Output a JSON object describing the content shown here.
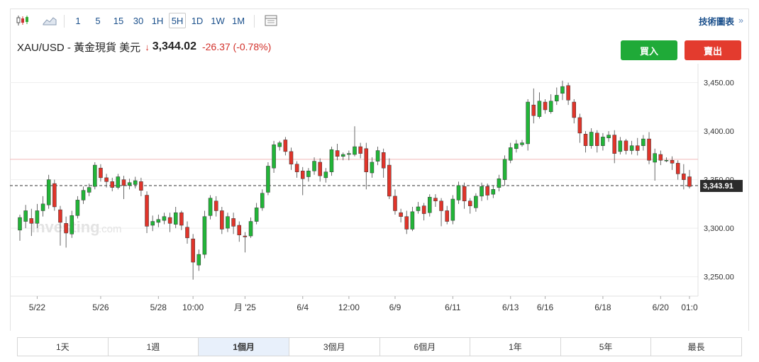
{
  "toolbar": {
    "intervals": [
      "1",
      "5",
      "15",
      "30",
      "1H",
      "5H",
      "1D",
      "1W",
      "1M"
    ],
    "selected_interval": "5H",
    "icons": [
      "candlestick-icon",
      "area-chart-icon",
      "data-table-icon"
    ],
    "tech_chart_label": "技術圖表",
    "tech_chart_arrow": "»"
  },
  "quote": {
    "symbol": "XAU/USD - 黃金現貨 美元",
    "direction_icon": "↓",
    "price": "3,344.02",
    "change": "-26.37 (-0.78%)"
  },
  "buttons": {
    "buy": "買入",
    "sell": "賣出"
  },
  "watermark": {
    "logo": "Investing",
    "suffix": ".com"
  },
  "chart_data": {
    "type": "candlestick",
    "instrument": "XAU/USD",
    "interval": "5H",
    "ylim": [
      3230,
      3468
    ],
    "y_ticks": [
      3250,
      3300,
      3350,
      3400,
      3450
    ],
    "y_tick_labels": [
      "3,250.00",
      "3,300.00",
      "3,350.00",
      "3,400.00",
      "3,450.00"
    ],
    "x_tick_labels": [
      {
        "label": "5/22",
        "idx": 3
      },
      {
        "label": "5/26",
        "idx": 14
      },
      {
        "label": "5/28",
        "idx": 24
      },
      {
        "label": "10:00",
        "idx": 30
      },
      {
        "label": "月 '25",
        "idx": 39
      },
      {
        "label": "6/4",
        "idx": 49
      },
      {
        "label": "12:00",
        "idx": 57
      },
      {
        "label": "6/9",
        "idx": 65
      },
      {
        "label": "6/11",
        "idx": 75
      },
      {
        "label": "6/13",
        "idx": 85
      },
      {
        "label": "6/16",
        "idx": 91
      },
      {
        "label": "6/18",
        "idx": 101
      },
      {
        "label": "6/20",
        "idx": 111
      },
      {
        "label": "01:0",
        "idx": 116
      }
    ],
    "current_price": 3343.91,
    "current_price_label": "3,343.91",
    "reference_line": 3371,
    "candles": [
      [
        3298,
        3311,
        3287,
        3314
      ],
      [
        3307,
        3318,
        3300,
        3324
      ],
      [
        3310,
        3305,
        3292,
        3320
      ],
      [
        3305,
        3318,
        3300,
        3325
      ],
      [
        3318,
        3325,
        3312,
        3333
      ],
      [
        3324,
        3350,
        3320,
        3355
      ],
      [
        3346,
        3322,
        3318,
        3350
      ],
      [
        3319,
        3306,
        3282,
        3323
      ],
      [
        3305,
        3295,
        3280,
        3312
      ],
      [
        3294,
        3313,
        3290,
        3318
      ],
      [
        3313,
        3329,
        3310,
        3333
      ],
      [
        3329,
        3339,
        3325,
        3343
      ],
      [
        3337,
        3342,
        3333,
        3346
      ],
      [
        3343,
        3365,
        3340,
        3368
      ],
      [
        3362,
        3352,
        3348,
        3366
      ],
      [
        3352,
        3348,
        3342,
        3356
      ],
      [
        3348,
        3342,
        3338,
        3352
      ],
      [
        3342,
        3353,
        3340,
        3356
      ],
      [
        3350,
        3344,
        3330,
        3354
      ],
      [
        3344,
        3347,
        3340,
        3351
      ],
      [
        3345,
        3349,
        3341,
        3353
      ],
      [
        3348,
        3339,
        3333,
        3352
      ],
      [
        3334,
        3302,
        3295,
        3338
      ],
      [
        3303,
        3307,
        3297,
        3313
      ],
      [
        3306,
        3309,
        3301,
        3314
      ],
      [
        3308,
        3312,
        3304,
        3316
      ],
      [
        3311,
        3305,
        3296,
        3316
      ],
      [
        3304,
        3316,
        3300,
        3322
      ],
      [
        3316,
        3303,
        3298,
        3318
      ],
      [
        3301,
        3290,
        3284,
        3307
      ],
      [
        3289,
        3265,
        3247,
        3294
      ],
      [
        3262,
        3273,
        3256,
        3278
      ],
      [
        3273,
        3312,
        3269,
        3318
      ],
      [
        3313,
        3331,
        3309,
        3334
      ],
      [
        3328,
        3318,
        3312,
        3333
      ],
      [
        3318,
        3299,
        3294,
        3322
      ],
      [
        3300,
        3312,
        3296,
        3316
      ],
      [
        3310,
        3302,
        3294,
        3316
      ],
      [
        3303,
        3293,
        3286,
        3307
      ],
      [
        3292,
        3291,
        3275,
        3296
      ],
      [
        3292,
        3307,
        3290,
        3311
      ],
      [
        3307,
        3321,
        3304,
        3326
      ],
      [
        3321,
        3336,
        3318,
        3340
      ],
      [
        3337,
        3364,
        3334,
        3368
      ],
      [
        3362,
        3386,
        3357,
        3390
      ],
      [
        3384,
        3388,
        3380,
        3390
      ],
      [
        3391,
        3379,
        3375,
        3394
      ],
      [
        3379,
        3366,
        3360,
        3383
      ],
      [
        3366,
        3358,
        3352,
        3369
      ],
      [
        3359,
        3351,
        3334,
        3363
      ],
      [
        3353,
        3359,
        3348,
        3362
      ],
      [
        3359,
        3369,
        3355,
        3373
      ],
      [
        3368,
        3354,
        3348,
        3372
      ],
      [
        3352,
        3358,
        3347,
        3362
      ],
      [
        3358,
        3381,
        3354,
        3384
      ],
      [
        3380,
        3374,
        3370,
        3387
      ],
      [
        3374,
        3376,
        3370,
        3378
      ],
      [
        3376,
        3377,
        3370,
        3380
      ],
      [
        3376,
        3384,
        3374,
        3405
      ],
      [
        3384,
        3377,
        3372,
        3388
      ],
      [
        3382,
        3358,
        3340,
        3388
      ],
      [
        3357,
        3368,
        3352,
        3373
      ],
      [
        3369,
        3380,
        3365,
        3384
      ],
      [
        3378,
        3362,
        3352,
        3382
      ],
      [
        3365,
        3333,
        3330,
        3372
      ],
      [
        3333,
        3318,
        3314,
        3340
      ],
      [
        3316,
        3312,
        3306,
        3320
      ],
      [
        3312,
        3299,
        3294,
        3318
      ],
      [
        3299,
        3317,
        3297,
        3322
      ],
      [
        3318,
        3322,
        3315,
        3327
      ],
      [
        3323,
        3315,
        3308,
        3326
      ],
      [
        3316,
        3332,
        3312,
        3335
      ],
      [
        3331,
        3328,
        3322,
        3335
      ],
      [
        3328,
        3318,
        3302,
        3331
      ],
      [
        3318,
        3307,
        3304,
        3323
      ],
      [
        3308,
        3330,
        3304,
        3334
      ],
      [
        3329,
        3344,
        3325,
        3348
      ],
      [
        3343,
        3328,
        3320,
        3347
      ],
      [
        3328,
        3323,
        3315,
        3331
      ],
      [
        3321,
        3333,
        3317,
        3336
      ],
      [
        3333,
        3343,
        3328,
        3347
      ],
      [
        3343,
        3334,
        3329,
        3346
      ],
      [
        3335,
        3340,
        3331,
        3344
      ],
      [
        3342,
        3351,
        3338,
        3355
      ],
      [
        3350,
        3371,
        3344,
        3375
      ],
      [
        3370,
        3383,
        3367,
        3388
      ],
      [
        3382,
        3387,
        3378,
        3391
      ],
      [
        3386,
        3388,
        3384,
        3391
      ],
      [
        3387,
        3430,
        3380,
        3433
      ],
      [
        3427,
        3416,
        3408,
        3444
      ],
      [
        3415,
        3431,
        3413,
        3440
      ],
      [
        3430,
        3422,
        3418,
        3433
      ],
      [
        3420,
        3431,
        3418,
        3438
      ],
      [
        3431,
        3437,
        3427,
        3445
      ],
      [
        3439,
        3446,
        3432,
        3452
      ],
      [
        3447,
        3432,
        3427,
        3450
      ],
      [
        3430,
        3414,
        3408,
        3433
      ],
      [
        3414,
        3398,
        3388,
        3418
      ],
      [
        3397,
        3385,
        3378,
        3400
      ],
      [
        3385,
        3399,
        3382,
        3403
      ],
      [
        3398,
        3385,
        3378,
        3401
      ],
      [
        3385,
        3394,
        3380,
        3398
      ],
      [
        3393,
        3396,
        3389,
        3400
      ],
      [
        3396,
        3377,
        3367,
        3401
      ],
      [
        3379,
        3390,
        3376,
        3394
      ],
      [
        3390,
        3380,
        3376,
        3392
      ],
      [
        3380,
        3385,
        3376,
        3390
      ],
      [
        3385,
        3380,
        3375,
        3393
      ],
      [
        3385,
        3392,
        3380,
        3396
      ],
      [
        3392,
        3370,
        3366,
        3399
      ],
      [
        3368,
        3377,
        3349,
        3382
      ],
      [
        3376,
        3370,
        3365,
        3380
      ],
      [
        3370,
        3370,
        3368,
        3373
      ],
      [
        3370,
        3367,
        3360,
        3374
      ],
      [
        3367,
        3356,
        3350,
        3370
      ],
      [
        3356,
        3350,
        3340,
        3366
      ],
      [
        3353,
        3343,
        3341,
        3360
      ]
    ]
  },
  "range_tabs": [
    "1天",
    "1週",
    "1個月",
    "3個月",
    "6個月",
    "1年",
    "5年",
    "最長"
  ],
  "selected_range": "1個月"
}
